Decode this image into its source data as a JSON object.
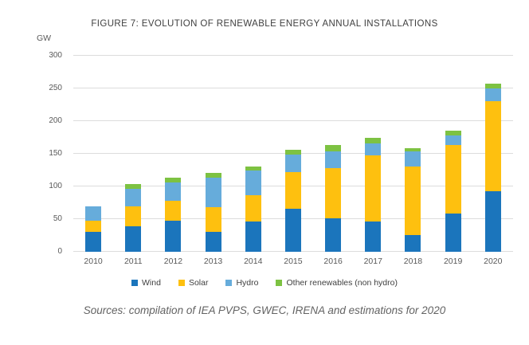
{
  "figure": {
    "title": "FIGURE 7: EVOLUTION OF RENEWABLE ENERGY ANNUAL INSTALLATIONS",
    "unit_label": "GW",
    "source_note": "Sources: compilation of IEA PVPS, GWEC, IRENA and estimations for 2020"
  },
  "colors": {
    "wind": "#1b75bc",
    "solar": "#fec00f",
    "hydro": "#66acdb",
    "other": "#7dc242",
    "grid": "#dcdcdc",
    "axis_text": "#595959",
    "title_text": "#3f3f3f"
  },
  "chart_data": {
    "type": "bar",
    "stacked": true,
    "title": "FIGURE 7: EVOLUTION OF RENEWABLE ENERGY ANNUAL INSTALLATIONS",
    "ylabel": "GW",
    "ylim": [
      0,
      300
    ],
    "ytick_step": 50,
    "grid": true,
    "legend_position": "bottom",
    "categories": [
      "2010",
      "2011",
      "2012",
      "2013",
      "2014",
      "2015",
      "2016",
      "2017",
      "2018",
      "2019",
      "2020"
    ],
    "series": [
      {
        "name": "Wind",
        "color_key": "wind",
        "values": [
          30,
          39,
          48,
          30,
          46,
          66,
          51,
          46,
          26,
          58,
          93
        ]
      },
      {
        "name": "Solar",
        "color_key": "solar",
        "values": [
          18,
          31,
          30,
          38,
          41,
          56,
          77,
          101,
          104,
          106,
          138
        ]
      },
      {
        "name": "Hydro",
        "color_key": "hydro",
        "values": [
          21,
          26,
          28,
          45,
          37,
          27,
          26,
          19,
          24,
          14,
          19
        ]
      },
      {
        "name": "Other renewables (non hydro)",
        "color_key": "other",
        "values": [
          0,
          8,
          8,
          8,
          6,
          7,
          9,
          8,
          5,
          8,
          7
        ]
      }
    ]
  }
}
